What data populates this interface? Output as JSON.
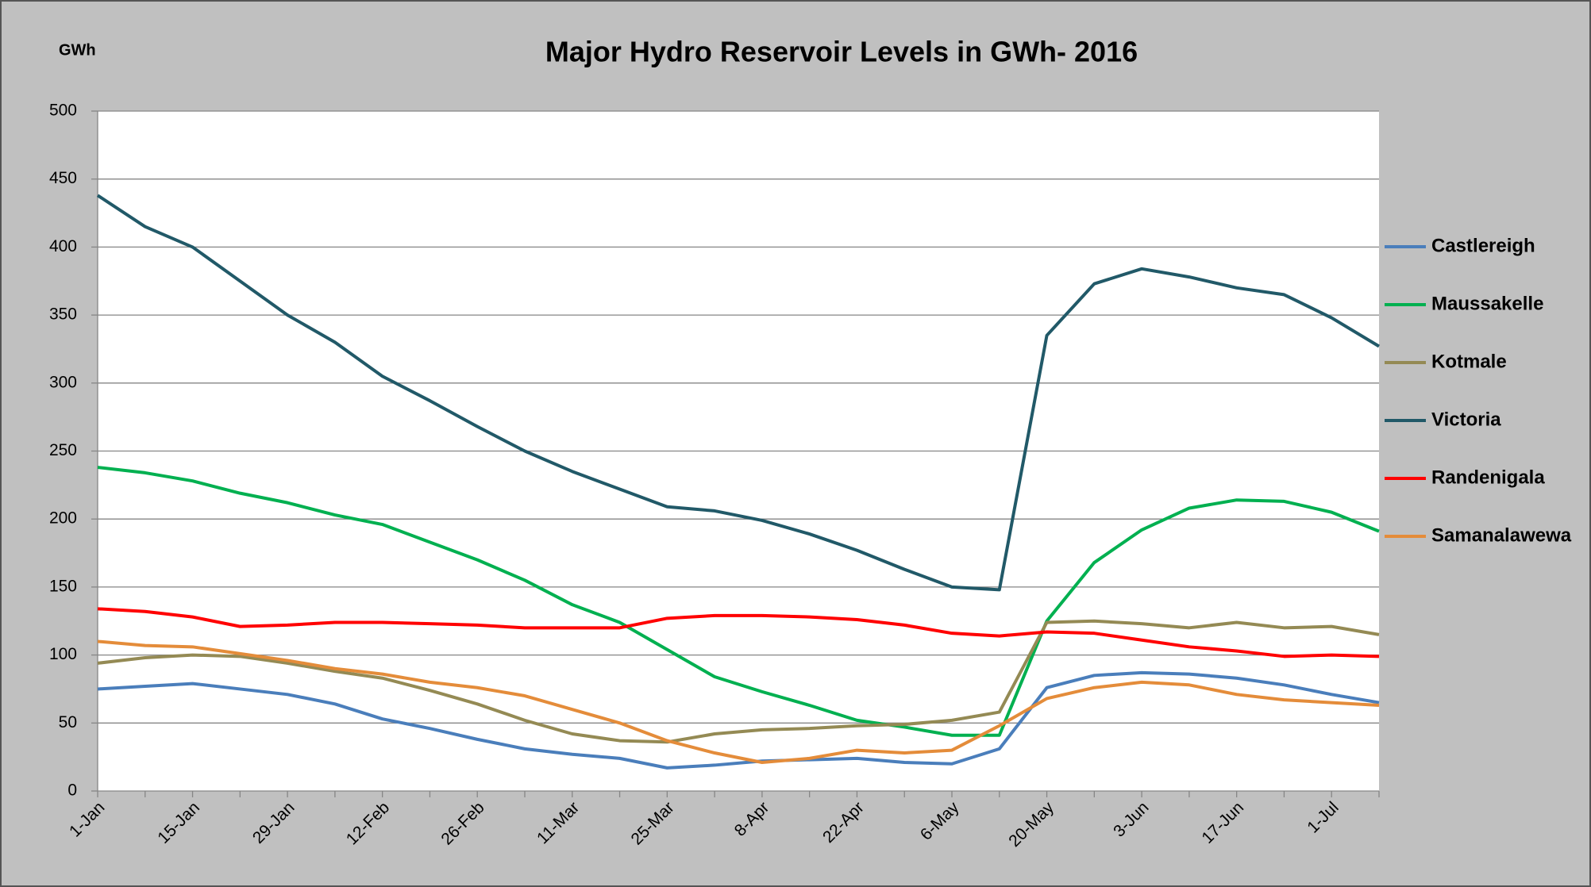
{
  "chart_data": {
    "type": "line",
    "title": "Major Hydro Reservoir Levels in GWh- 2016",
    "y_label": "GWh",
    "categories": [
      "1-Jan",
      null,
      "15-Jan",
      null,
      "29-Jan",
      null,
      "12-Feb",
      null,
      "26-Feb",
      null,
      "11-Mar",
      null,
      "25-Mar",
      null,
      "8-Apr",
      null,
      "22-Apr",
      null,
      "6-May",
      null,
      "20-May",
      null,
      "3-Jun",
      null,
      "17-Jun",
      null,
      "1-Jul",
      null
    ],
    "series": [
      {
        "name": "Castlereigh",
        "color": "#4a7ebb",
        "values": [
          75,
          77,
          79,
          75,
          71,
          64,
          53,
          46,
          38,
          31,
          27,
          24,
          17,
          19,
          22,
          23,
          24,
          21,
          20,
          31,
          76,
          85,
          87,
          86,
          83,
          78,
          71,
          65
        ]
      },
      {
        "name": "Maussakelle",
        "color": "#00b050",
        "values": [
          238,
          234,
          228,
          219,
          212,
          203,
          196,
          183,
          170,
          155,
          137,
          124,
          104,
          84,
          73,
          63,
          52,
          47,
          41,
          41,
          125,
          168,
          192,
          208,
          214,
          213,
          205,
          191
        ]
      },
      {
        "name": "Kotmale",
        "color": "#948a54",
        "values": [
          94,
          98,
          100,
          99,
          94,
          88,
          83,
          74,
          64,
          52,
          42,
          37,
          36,
          42,
          45,
          46,
          48,
          49,
          52,
          58,
          124,
          125,
          123,
          120,
          124,
          120,
          121,
          115
        ]
      },
      {
        "name": "Victoria",
        "color": "#215968",
        "values": [
          438,
          415,
          400,
          375,
          350,
          330,
          305,
          287,
          268,
          250,
          235,
          222,
          209,
          206,
          199,
          189,
          177,
          163,
          150,
          148,
          335,
          373,
          384,
          378,
          370,
          365,
          348,
          327
        ]
      },
      {
        "name": "Randenigala",
        "color": "#ff0000",
        "values": [
          134,
          132,
          128,
          121,
          122,
          124,
          124,
          123,
          122,
          120,
          120,
          120,
          127,
          129,
          129,
          128,
          126,
          122,
          116,
          114,
          117,
          116,
          111,
          106,
          103,
          99,
          100,
          99
        ]
      },
      {
        "name": "Samanalawewa",
        "color": "#e48c3a",
        "values": [
          110,
          107,
          106,
          101,
          96,
          90,
          86,
          80,
          76,
          70,
          60,
          50,
          37,
          28,
          21,
          24,
          30,
          28,
          30,
          48,
          68,
          76,
          80,
          78,
          71,
          67,
          65,
          63
        ]
      }
    ],
    "ylim": [
      0,
      500
    ],
    "yticks": [
      0,
      50,
      100,
      150,
      200,
      250,
      300,
      350,
      400,
      450,
      500
    ],
    "grid": true,
    "legend": "right"
  }
}
